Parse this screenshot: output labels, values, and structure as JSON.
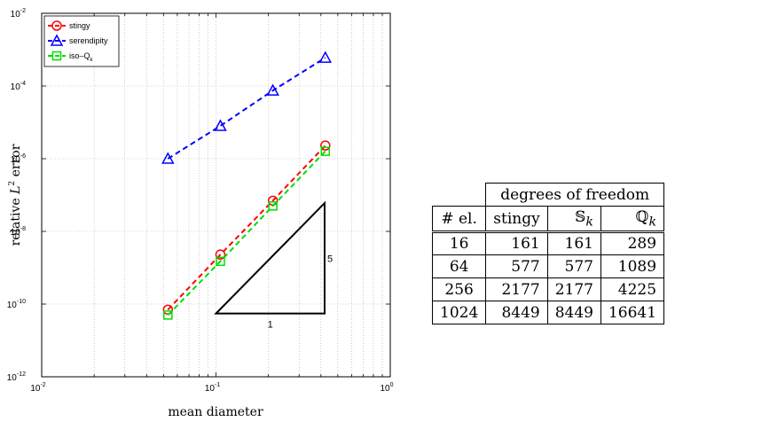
{
  "chart_data": {
    "type": "line",
    "xscale": "log",
    "yscale": "log",
    "xlabel": "mean diameter",
    "ylabel": "relative L2 error",
    "ylabel_parts": {
      "pre": "relative ",
      "italic": "L",
      "sup": "2",
      "post": " error"
    },
    "xlim": [
      0.01,
      1
    ],
    "ylim": [
      1e-12,
      0.01
    ],
    "grid": true,
    "legend_placement": "top-left",
    "xticks": [
      {
        "v": 0.01,
        "base": "10",
        "exp": "-2"
      },
      {
        "v": 0.1,
        "base": "10",
        "exp": "-1"
      },
      {
        "v": 1,
        "base": "10",
        "exp": "0"
      }
    ],
    "yticks": [
      {
        "v": 1e-12,
        "base": "10",
        "exp": "-12"
      },
      {
        "v": 1e-10,
        "base": "10",
        "exp": "-10"
      },
      {
        "v": 1e-08,
        "base": "10",
        "exp": "-8"
      },
      {
        "v": 1e-06,
        "base": "10",
        "exp": "-6"
      },
      {
        "v": 0.0001,
        "base": "10",
        "exp": "-4"
      },
      {
        "v": 0.01,
        "base": "10",
        "exp": "-2"
      }
    ],
    "series": [
      {
        "name": "stingy",
        "color": "#ff0000",
        "marker": "circle",
        "x": [
          0.053,
          0.106,
          0.212,
          0.424
        ],
        "y": [
          7e-11,
          2.3e-09,
          7e-08,
          2.3e-06
        ]
      },
      {
        "name": "serendipity",
        "color": "#0000ff",
        "marker": "triangle",
        "x": [
          0.053,
          0.106,
          0.212,
          0.424
        ],
        "y": [
          1e-06,
          8e-06,
          7.5e-05,
          0.0006
        ]
      },
      {
        "name": "iso–Q",
        "name_sub": "k",
        "color": "#00dd00",
        "marker": "square",
        "x": [
          0.053,
          0.106,
          0.212,
          0.424
        ],
        "y": [
          5e-11,
          1.5e-09,
          5e-08,
          1.6e-06
        ]
      }
    ],
    "slope_triangle": {
      "x0": 0.1,
      "x1": 0.42,
      "y0": 5.5e-11,
      "y1": 6e-08,
      "run_label": "1",
      "rise_label": "5"
    }
  },
  "table": {
    "group_header": "degrees of freedom",
    "col_headers": [
      "# el.",
      "stingy",
      "𝕊",
      "ℚ"
    ],
    "col_header_subs": [
      "",
      "",
      "k",
      "k"
    ],
    "rows": [
      [
        "16",
        "161",
        "161",
        "289"
      ],
      [
        "64",
        "577",
        "577",
        "1089"
      ],
      [
        "256",
        "2177",
        "2177",
        "4225"
      ],
      [
        "1024",
        "8449",
        "8449",
        "16641"
      ]
    ]
  }
}
